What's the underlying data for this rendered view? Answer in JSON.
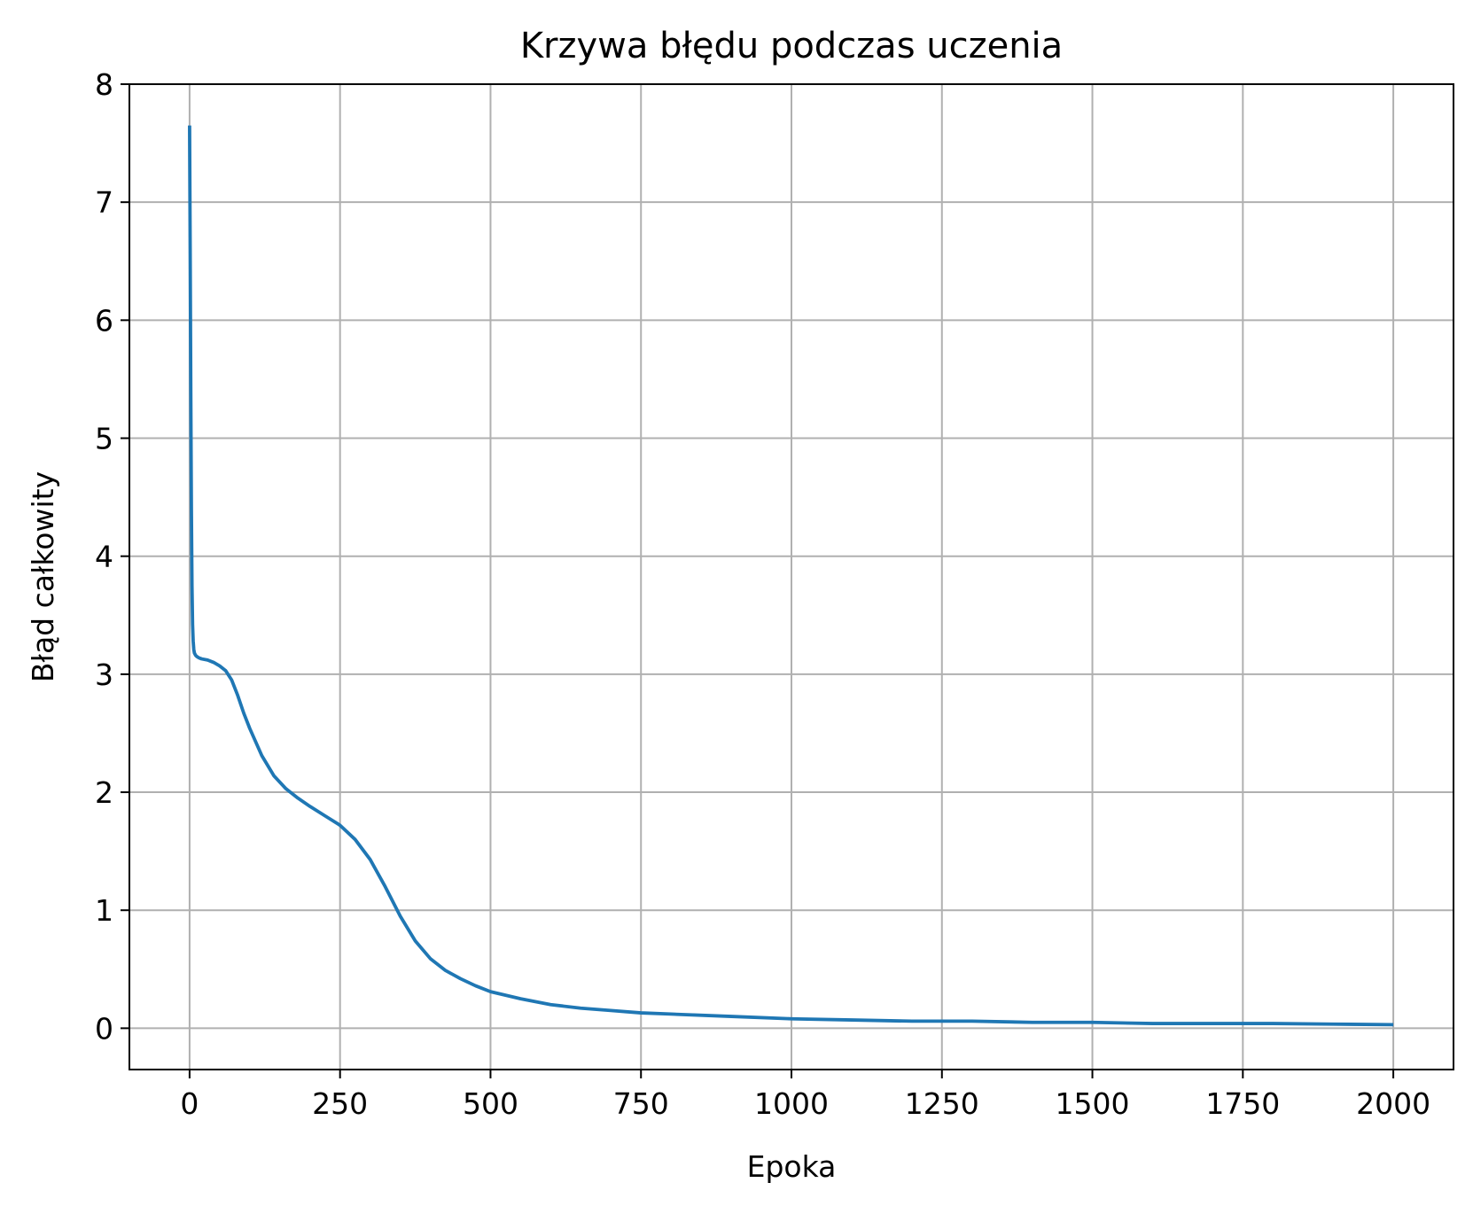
{
  "chart_data": {
    "type": "line",
    "title": "Krzywa błędu podczas uczenia",
    "xlabel": "Epoka",
    "ylabel": "Błąd całkowity",
    "xlim": [
      -100,
      2100
    ],
    "ylim": [
      -0.35,
      8.0
    ],
    "x_ticks": [
      0,
      250,
      500,
      750,
      1000,
      1250,
      1500,
      1750,
      2000
    ],
    "x_tick_labels": [
      "0",
      "250",
      "500",
      "750",
      "1000",
      "1250",
      "1500",
      "1750",
      "2000"
    ],
    "y_ticks": [
      0,
      1,
      2,
      3,
      4,
      5,
      6,
      7,
      8
    ],
    "y_tick_labels": [
      "0",
      "1",
      "2",
      "3",
      "4",
      "5",
      "6",
      "7",
      "8"
    ],
    "grid": true,
    "line_color": "#1f77b4",
    "grid_color": "#b0b0b0",
    "series": [
      {
        "x": [
          0,
          1,
          2,
          3,
          4,
          5,
          6,
          7,
          8,
          10,
          12,
          15,
          20,
          30,
          40,
          50,
          60,
          70,
          80,
          90,
          100,
          120,
          140,
          160,
          180,
          200,
          225,
          250,
          275,
          300,
          325,
          350,
          375,
          400,
          425,
          450,
          475,
          500,
          550,
          600,
          650,
          700,
          750,
          800,
          900,
          1000,
          1100,
          1200,
          1300,
          1400,
          1500,
          1600,
          1700,
          1800,
          1900,
          2000
        ],
        "y": [
          7.65,
          6.6,
          5.4,
          4.4,
          3.75,
          3.42,
          3.28,
          3.21,
          3.18,
          3.16,
          3.15,
          3.14,
          3.13,
          3.12,
          3.1,
          3.07,
          3.03,
          2.95,
          2.82,
          2.67,
          2.54,
          2.31,
          2.14,
          2.03,
          1.95,
          1.88,
          1.8,
          1.72,
          1.6,
          1.43,
          1.2,
          0.95,
          0.74,
          0.59,
          0.49,
          0.42,
          0.36,
          0.31,
          0.25,
          0.2,
          0.17,
          0.15,
          0.13,
          0.12,
          0.1,
          0.08,
          0.07,
          0.06,
          0.06,
          0.05,
          0.05,
          0.04,
          0.04,
          0.04,
          0.035,
          0.03
        ]
      }
    ]
  }
}
